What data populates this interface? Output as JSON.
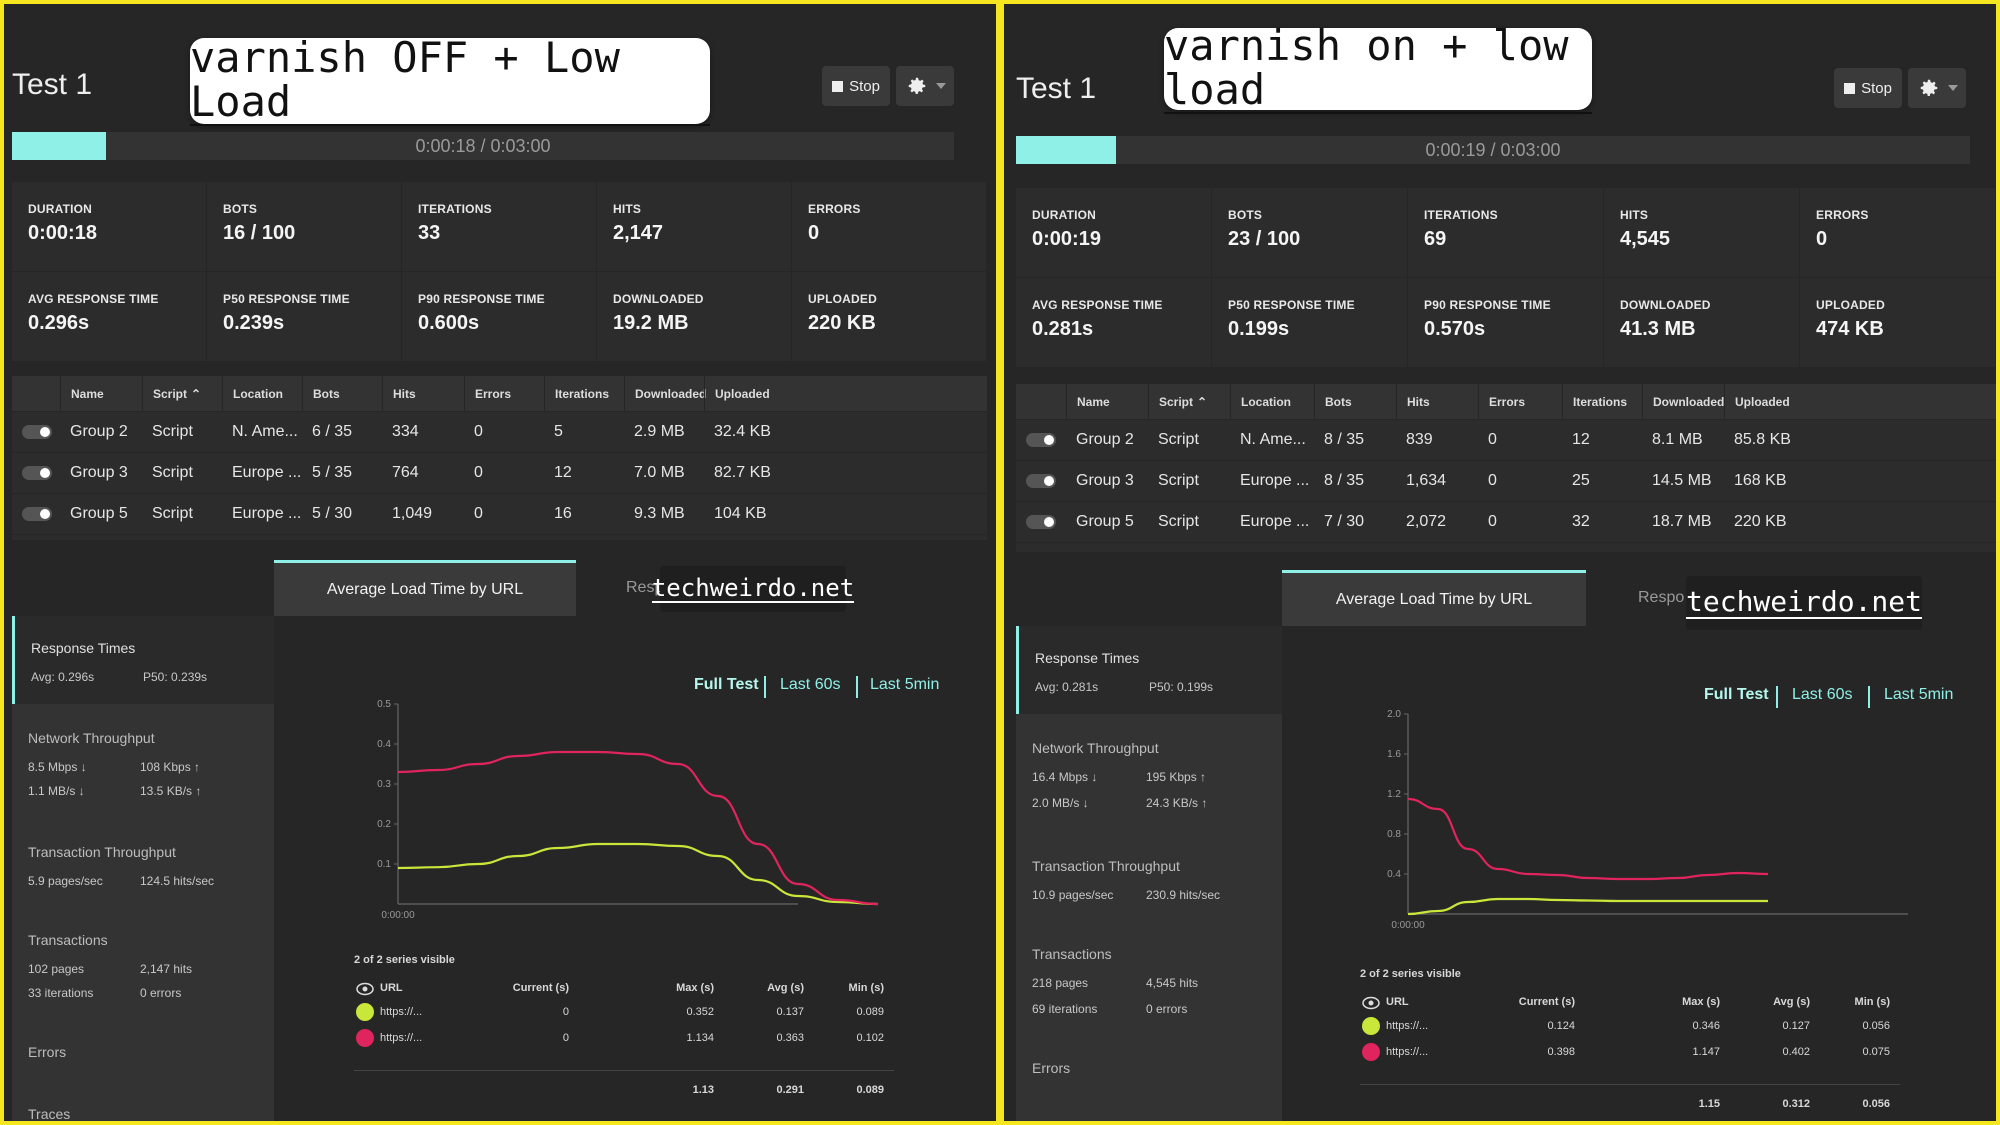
{
  "colors": {
    "accent": "#8ef0e6",
    "series_green": "#c9e63a",
    "series_red": "#e0245e",
    "frame": "#f5e61f"
  },
  "panels": [
    {
      "test_title": "Test 1",
      "note": "varnish OFF + Low Load",
      "stop_label": "Stop",
      "progress": {
        "text": "0:00:18 / 0:03:00",
        "fraction": 0.1
      },
      "stats": [
        {
          "label": "DURATION",
          "value": "0:00:18"
        },
        {
          "label": "BOTS",
          "value": "16 / 100"
        },
        {
          "label": "ITERATIONS",
          "value": "33"
        },
        {
          "label": "HITS",
          "value": "2,147"
        },
        {
          "label": "ERRORS",
          "value": "0"
        },
        {
          "label": "AVG RESPONSE TIME",
          "value": "0.296s"
        },
        {
          "label": "P50 RESPONSE TIME",
          "value": "0.239s"
        },
        {
          "label": "P90 RESPONSE TIME",
          "value": "0.600s"
        },
        {
          "label": "DOWNLOADED",
          "value": "19.2 MB"
        },
        {
          "label": "UPLOADED",
          "value": "220 KB"
        }
      ],
      "table": {
        "headers": [
          "Name",
          "Script",
          "Location",
          "Bots",
          "Hits",
          "Errors",
          "Iterations",
          "Downloaded",
          "Uploaded"
        ],
        "rows": [
          [
            "Group 2",
            "Script",
            "N. Ame...",
            "6 / 35",
            "334",
            "0",
            "5",
            "2.9 MB",
            "32.4 KB"
          ],
          [
            "Group 3",
            "Script",
            "Europe ...",
            "5 / 35",
            "764",
            "0",
            "12",
            "7.0 MB",
            "82.7 KB"
          ],
          [
            "Group 5",
            "Script",
            "Europe ...",
            "5 / 30",
            "1,049",
            "0",
            "16",
            "9.3 MB",
            "104 KB"
          ]
        ]
      },
      "tab_active": "Average Load Time by URL",
      "tab_inactive": "Resp",
      "watermark": "techweirdo.net",
      "sidebar": {
        "response_title": "Response Times",
        "avg": "Avg: 0.296s",
        "p50": "P50: 0.239s",
        "net_title": "Network Throughput",
        "net": [
          "8.5 Mbps ↓",
          "108 Kbps ↑",
          "1.1 MB/s ↓",
          "13.5 KB/s ↑"
        ],
        "tx_title": "Transaction Throughput",
        "tx": [
          "5.9 pages/sec",
          "124.5 hits/sec"
        ],
        "trans_title": "Transactions",
        "trans": [
          "102 pages",
          "2,147 hits",
          "33 iterations",
          "0 errors"
        ],
        "errors_title": "Errors",
        "traces_title": "Traces"
      },
      "ranges": [
        "Full Test",
        "Last 60s",
        "Last 5min"
      ],
      "legend": {
        "visible": "2 of 2 series visible",
        "headers": [
          "URL",
          "Current (s)",
          "Max (s)",
          "Avg (s)",
          "Min (s)"
        ],
        "rows": [
          [
            "https://...",
            "0",
            "0.352",
            "0.137",
            "0.089"
          ],
          [
            "https://...",
            "0",
            "1.134",
            "0.363",
            "0.102"
          ]
        ],
        "totals": [
          "1.13",
          "0.291",
          "0.089"
        ]
      }
    },
    {
      "test_title": "Test 1",
      "note": "varnish on + low load",
      "stop_label": "Stop",
      "progress": {
        "text": "0:00:19 / 0:03:00",
        "fraction": 0.105
      },
      "stats": [
        {
          "label": "DURATION",
          "value": "0:00:19"
        },
        {
          "label": "BOTS",
          "value": "23 / 100"
        },
        {
          "label": "ITERATIONS",
          "value": "69"
        },
        {
          "label": "HITS",
          "value": "4,545"
        },
        {
          "label": "ERRORS",
          "value": "0"
        },
        {
          "label": "AVG RESPONSE TIME",
          "value": "0.281s"
        },
        {
          "label": "P50 RESPONSE TIME",
          "value": "0.199s"
        },
        {
          "label": "P90 RESPONSE TIME",
          "value": "0.570s"
        },
        {
          "label": "DOWNLOADED",
          "value": "41.3 MB"
        },
        {
          "label": "UPLOADED",
          "value": "474 KB"
        }
      ],
      "table": {
        "headers": [
          "Name",
          "Script",
          "Location",
          "Bots",
          "Hits",
          "Errors",
          "Iterations",
          "Downloaded",
          "Uploaded"
        ],
        "rows": [
          [
            "Group 2",
            "Script",
            "N. Ame...",
            "8 / 35",
            "839",
            "0",
            "12",
            "8.1 MB",
            "85.8 KB"
          ],
          [
            "Group 3",
            "Script",
            "Europe ...",
            "8 / 35",
            "1,634",
            "0",
            "25",
            "14.5 MB",
            "168 KB"
          ],
          [
            "Group 5",
            "Script",
            "Europe ...",
            "7 / 30",
            "2,072",
            "0",
            "32",
            "18.7 MB",
            "220 KB"
          ]
        ]
      },
      "tab_active": "Average Load Time by URL",
      "tab_inactive": "Respo",
      "watermark": "techweirdo.net",
      "sidebar": {
        "response_title": "Response Times",
        "avg": "Avg: 0.281s",
        "p50": "P50: 0.199s",
        "net_title": "Network Throughput",
        "net": [
          "16.4 Mbps ↓",
          "195 Kbps ↑",
          "2.0 MB/s ↓",
          "24.3 KB/s ↑"
        ],
        "tx_title": "Transaction Throughput",
        "tx": [
          "10.9 pages/sec",
          "230.9 hits/sec"
        ],
        "trans_title": "Transactions",
        "trans": [
          "218 pages",
          "4,545 hits",
          "69 iterations",
          "0 errors"
        ],
        "errors_title": "Errors",
        "traces_title": ""
      },
      "ranges": [
        "Full Test",
        "Last 60s",
        "Last 5min"
      ],
      "legend": {
        "visible": "2 of 2 series visible",
        "headers": [
          "URL",
          "Current (s)",
          "Max (s)",
          "Avg (s)",
          "Min (s)"
        ],
        "rows": [
          [
            "https://...",
            "0.124",
            "0.346",
            "0.127",
            "0.056"
          ],
          [
            "https://...",
            "0.398",
            "1.147",
            "0.402",
            "0.075"
          ]
        ],
        "totals": [
          "1.15",
          "0.312",
          "0.056"
        ]
      }
    }
  ],
  "chart_data": [
    {
      "type": "line",
      "title": "",
      "x": [
        "0:00:00",
        "",
        "",
        "",
        "",
        "",
        "",
        "",
        "",
        "",
        "",
        "",
        ""
      ],
      "y_ticks": [
        "0.1",
        "0.2",
        "0.3",
        "0.4",
        "0.5"
      ],
      "x_tick_label": "0:00:00",
      "ylim": [
        0,
        0.5
      ],
      "series": [
        {
          "color": "#c9e63a",
          "values": [
            0.09,
            0.092,
            0.1,
            0.12,
            0.14,
            0.15,
            0.15,
            0.145,
            0.12,
            0.06,
            0.02,
            0.005,
            0.0
          ]
        },
        {
          "color": "#e0245e",
          "values": [
            0.33,
            0.335,
            0.35,
            0.37,
            0.38,
            0.38,
            0.375,
            0.35,
            0.27,
            0.15,
            0.05,
            0.01,
            0.0
          ]
        }
      ]
    },
    {
      "type": "line",
      "title": "",
      "x": [
        "0:00:00",
        "",
        "",
        "",
        "",
        "",
        "",
        "",
        "",
        "",
        "",
        "",
        ""
      ],
      "y_ticks": [
        "0.4",
        "0.8",
        "1.2",
        "1.6",
        "2.0"
      ],
      "x_tick_label": "0:00:00",
      "ylim": [
        0,
        2.0
      ],
      "series": [
        {
          "color": "#c9e63a",
          "values": [
            0.0,
            0.03,
            0.12,
            0.15,
            0.15,
            0.14,
            0.135,
            0.13,
            0.13,
            0.13,
            0.13,
            0.13,
            0.13
          ]
        },
        {
          "color": "#e0245e",
          "values": [
            1.15,
            1.05,
            0.65,
            0.45,
            0.4,
            0.39,
            0.36,
            0.35,
            0.35,
            0.36,
            0.39,
            0.41,
            0.4
          ]
        }
      ]
    }
  ]
}
